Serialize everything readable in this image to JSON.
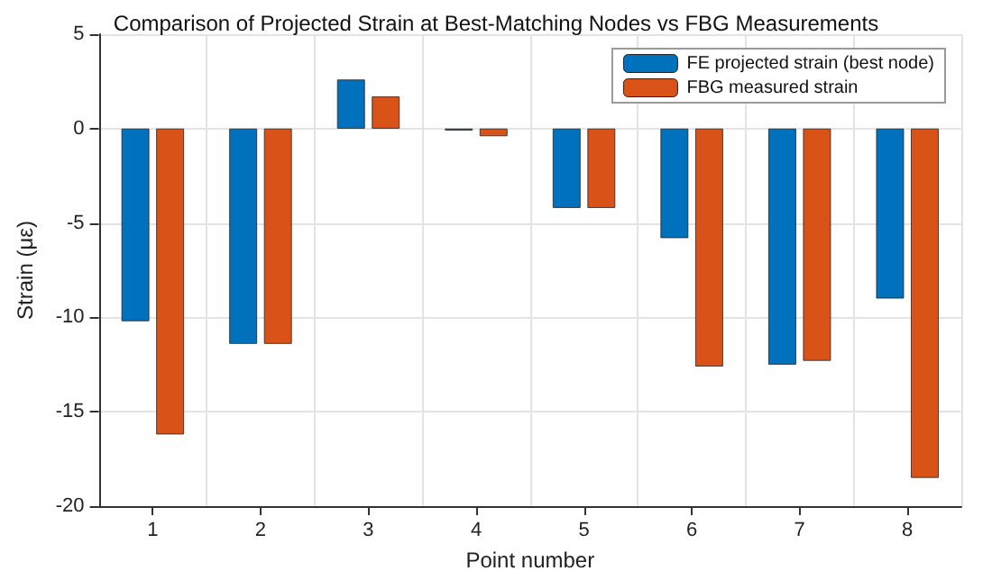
{
  "chart_data": {
    "type": "bar",
    "title": "Comparison of Projected Strain at Best-Matching Nodes vs FBG Measurements",
    "xlabel": "Point number",
    "ylabel": "Strain (με)",
    "categories": [
      "1",
      "2",
      "3",
      "4",
      "5",
      "6",
      "7",
      "8"
    ],
    "series": [
      {
        "name": "FE projected strain (best node)",
        "color": "#0072bd",
        "values": [
          -10.2,
          -11.4,
          2.6,
          -0.1,
          -4.2,
          -5.8,
          -12.5,
          -9.0
        ]
      },
      {
        "name": "FBG measured strain",
        "color": "#d95319",
        "values": [
          -16.2,
          -11.4,
          1.7,
          -0.4,
          -4.2,
          -12.6,
          -12.3,
          -18.5
        ]
      }
    ],
    "ylim": [
      -20,
      5
    ],
    "yticks": [
      -20,
      -15,
      -10,
      -5,
      0,
      5
    ],
    "grid": true,
    "legend": "top right"
  }
}
